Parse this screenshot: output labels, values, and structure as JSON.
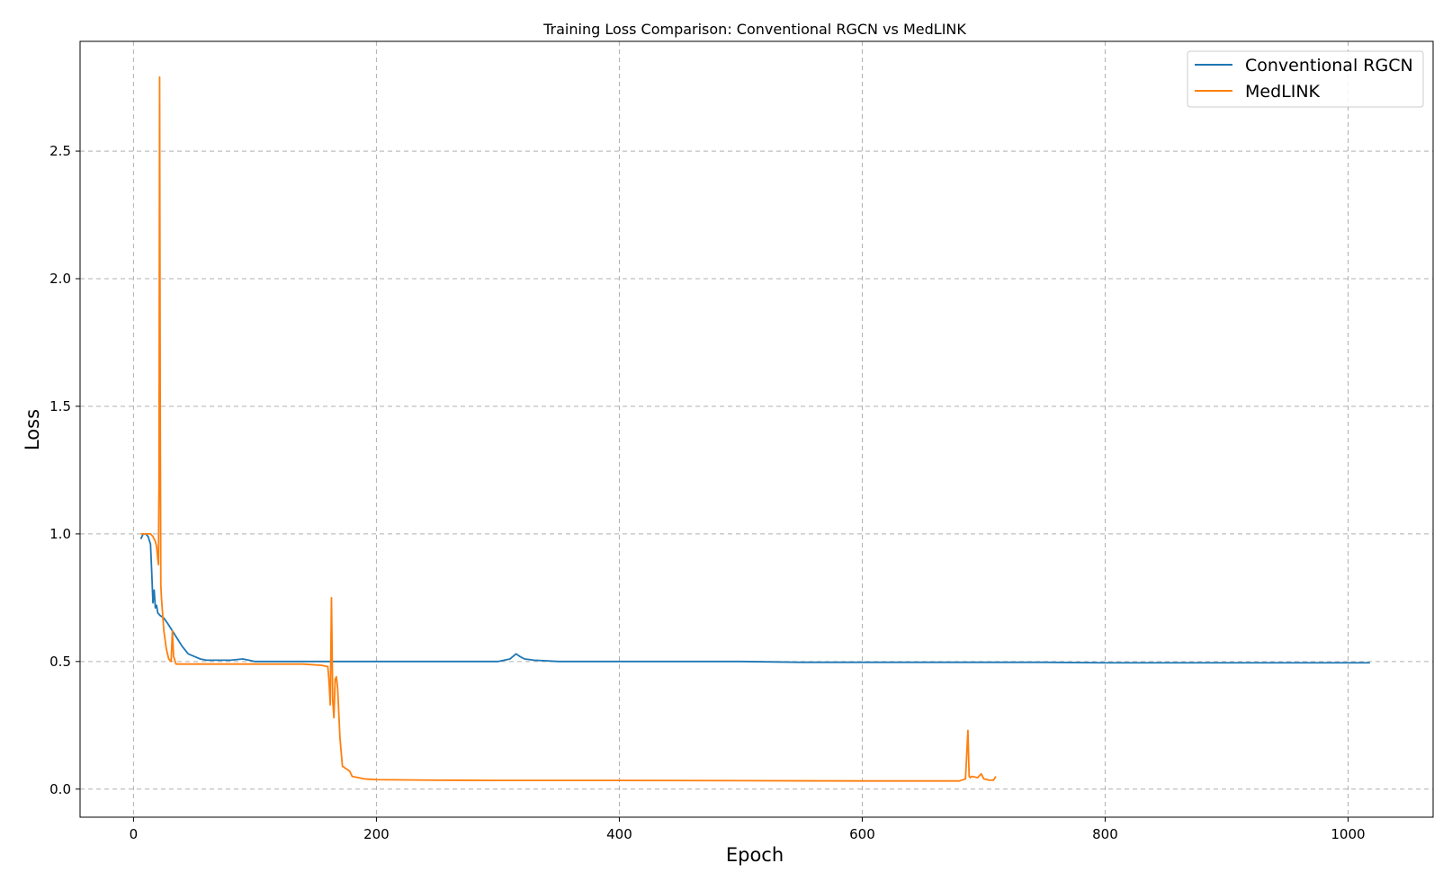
{
  "chart_data": {
    "type": "line",
    "title": "Training Loss Comparison: Conventional RGCN vs MedLINK",
    "xlabel": "Epoch",
    "ylabel": "Loss",
    "xlim": [
      -44,
      1070
    ],
    "ylim": [
      -0.11,
      2.93
    ],
    "xticks": [
      0,
      200,
      400,
      600,
      800,
      1000
    ],
    "yticks": [
      0.0,
      0.5,
      1.0,
      1.5,
      2.0,
      2.5
    ],
    "xtick_labels": [
      "0",
      "200",
      "400",
      "600",
      "800",
      "1000"
    ],
    "ytick_labels": [
      "0.0",
      "0.5",
      "1.0",
      "1.5",
      "2.0",
      "2.5"
    ],
    "grid": true,
    "legend_position": "top-right",
    "series": [
      {
        "name": "Conventional RGCN",
        "color": "#1f77b4",
        "x": [
          6,
          8,
          10,
          12,
          14,
          15,
          16,
          17,
          18,
          19,
          20,
          22,
          25,
          28,
          32,
          36,
          40,
          45,
          50,
          55,
          60,
          70,
          80,
          90,
          95,
          100,
          120,
          140,
          150,
          160,
          180,
          200,
          250,
          300,
          310,
          315,
          318,
          322,
          330,
          350,
          400,
          450,
          500,
          550,
          600,
          650,
          700,
          750,
          800,
          850,
          900,
          950,
          1000,
          1018
        ],
        "y": [
          0.98,
          1.0,
          1.0,
          0.99,
          0.96,
          0.85,
          0.73,
          0.78,
          0.71,
          0.72,
          0.69,
          0.68,
          0.67,
          0.65,
          0.62,
          0.59,
          0.56,
          0.53,
          0.52,
          0.51,
          0.505,
          0.505,
          0.505,
          0.51,
          0.505,
          0.5,
          0.5,
          0.5,
          0.5,
          0.5,
          0.5,
          0.5,
          0.5,
          0.5,
          0.51,
          0.53,
          0.52,
          0.51,
          0.505,
          0.5,
          0.5,
          0.5,
          0.5,
          0.497,
          0.497,
          0.497,
          0.497,
          0.497,
          0.495,
          0.495,
          0.495,
          0.495,
          0.495,
          0.495
        ]
      },
      {
        "name": "MedLINK",
        "color": "#ff7f0e",
        "x": [
          6,
          10,
          14,
          16,
          18,
          19,
          20,
          20.5,
          21,
          21.5,
          22,
          22.5,
          23,
          25,
          27,
          29,
          31,
          32,
          33,
          35,
          40,
          50,
          60,
          80,
          100,
          120,
          140,
          155,
          160,
          161,
          162,
          163,
          164,
          165,
          166,
          167,
          168,
          170,
          172,
          175,
          178,
          180,
          190,
          200,
          250,
          300,
          400,
          500,
          600,
          650,
          680,
          685,
          687,
          688,
          689,
          690,
          695,
          698,
          700,
          705,
          708,
          710
        ],
        "y": [
          1.0,
          1.0,
          1.0,
          0.99,
          0.97,
          0.95,
          0.9,
          0.88,
          1.2,
          2.79,
          1.5,
          0.8,
          0.75,
          0.62,
          0.55,
          0.51,
          0.5,
          0.62,
          0.52,
          0.49,
          0.49,
          0.49,
          0.49,
          0.49,
          0.49,
          0.49,
          0.49,
          0.485,
          0.48,
          0.42,
          0.33,
          0.75,
          0.35,
          0.28,
          0.43,
          0.44,
          0.4,
          0.2,
          0.09,
          0.08,
          0.07,
          0.05,
          0.04,
          0.037,
          0.035,
          0.034,
          0.034,
          0.033,
          0.032,
          0.032,
          0.032,
          0.04,
          0.23,
          0.05,
          0.045,
          0.05,
          0.045,
          0.06,
          0.04,
          0.035,
          0.035,
          0.05
        ]
      }
    ]
  }
}
